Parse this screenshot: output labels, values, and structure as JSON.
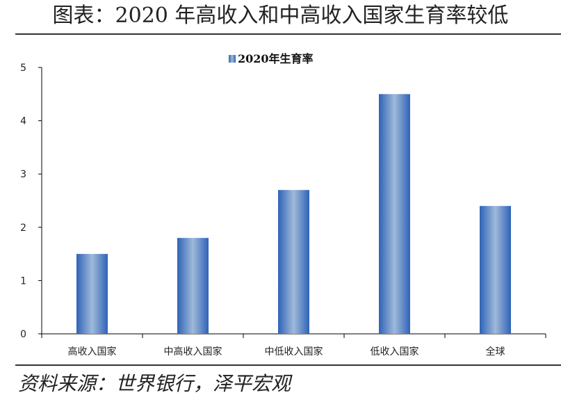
{
  "figure": {
    "title": "图表：2020 年高收入和中高收入国家生育率较低",
    "source": "资料来源：世界银行，泽平宏观"
  },
  "colors": {
    "bar_edge": "#2f63b8",
    "bar_mid": "#9fbad9",
    "axis": "#000000"
  },
  "chart_data": {
    "type": "bar",
    "categories": [
      "高收入国家",
      "中高收入国家",
      "中低收入国家",
      "低收入国家",
      "全球"
    ],
    "series": [
      {
        "name": "2020年生育率",
        "values": [
          1.5,
          1.8,
          2.7,
          4.5,
          2.4
        ]
      }
    ],
    "ylim": [
      0,
      5
    ],
    "yticks": [
      0,
      1,
      2,
      3,
      4,
      5
    ],
    "legend_position": "top-center",
    "grid": false
  }
}
